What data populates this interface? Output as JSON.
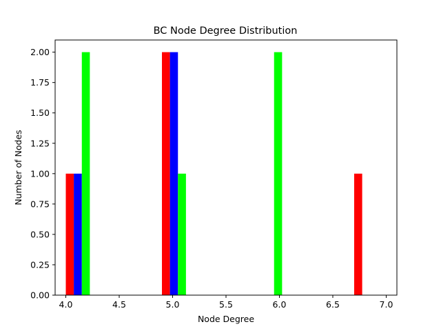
{
  "chart_data": {
    "type": "bar",
    "title": "BC Node Degree Distribution",
    "xlabel": "Node Degree",
    "ylabel": "Number of Nodes",
    "xlim": [
      3.9,
      7.1
    ],
    "ylim": [
      0,
      2.1
    ],
    "xticks": [
      "4.0",
      "4.5",
      "5.0",
      "5.5",
      "6.0",
      "6.5",
      "7.0"
    ],
    "yticks": [
      "0.00",
      "0.25",
      "0.50",
      "0.75",
      "1.00",
      "1.25",
      "1.50",
      "1.75",
      "2.00"
    ],
    "grid": false,
    "legend": "none",
    "bar_width": 0.075,
    "series": [
      {
        "color": "#ff0000",
        "bars": [
          {
            "x": 4.0375,
            "value": 1
          },
          {
            "x": 4.9375,
            "value": 2
          },
          {
            "x": 6.7375,
            "value": 1
          }
        ]
      },
      {
        "color": "#0000ff",
        "bars": [
          {
            "x": 4.1125,
            "value": 1
          },
          {
            "x": 5.0125,
            "value": 2
          }
        ]
      },
      {
        "color": "#00ff00",
        "bars": [
          {
            "x": 4.1875,
            "value": 2
          },
          {
            "x": 5.0875,
            "value": 1
          },
          {
            "x": 5.9875,
            "value": 2
          }
        ]
      }
    ]
  }
}
